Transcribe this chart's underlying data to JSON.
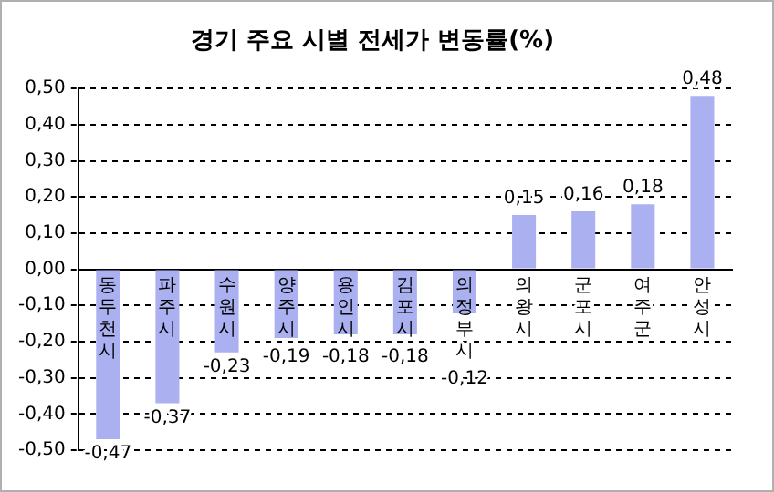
{
  "chart_data": {
    "type": "bar",
    "title": "경기 주요 시별 전세가 변동률(%)",
    "categories": [
      "동두천시",
      "파주시",
      "수원시",
      "양주시",
      "용인시",
      "김포시",
      "의정부시",
      "의왕시",
      "군포시",
      "여주군",
      "안성시"
    ],
    "values": [
      -0.47,
      -0.37,
      -0.23,
      -0.19,
      -0.18,
      -0.18,
      -0.12,
      0.15,
      0.16,
      0.18,
      0.48
    ],
    "value_labels": [
      "-0,47",
      "-0,37",
      "-0,23",
      "-0,19",
      "-0,18",
      "-0,18",
      "-0,12",
      "0,15",
      "0,16",
      "0,18",
      "0,48"
    ],
    "color": "#aab0f0",
    "ylim": [
      -0.5,
      0.5
    ],
    "yticks": [
      {
        "value": -0.5,
        "label": "-0,50"
      },
      {
        "value": -0.4,
        "label": "-0,40"
      },
      {
        "value": -0.3,
        "label": "-0,30"
      },
      {
        "value": -0.2,
        "label": "-0,20"
      },
      {
        "value": -0.1,
        "label": "-0,10"
      },
      {
        "value": 0,
        "label": "0,00"
      },
      {
        "value": 0.1,
        "label": "0,10"
      },
      {
        "value": 0.2,
        "label": "0,20"
      },
      {
        "value": 0.3,
        "label": "0,30"
      },
      {
        "value": 0.4,
        "label": "0,40"
      },
      {
        "value": 0.5,
        "label": "0,50"
      }
    ],
    "grid": "y"
  }
}
